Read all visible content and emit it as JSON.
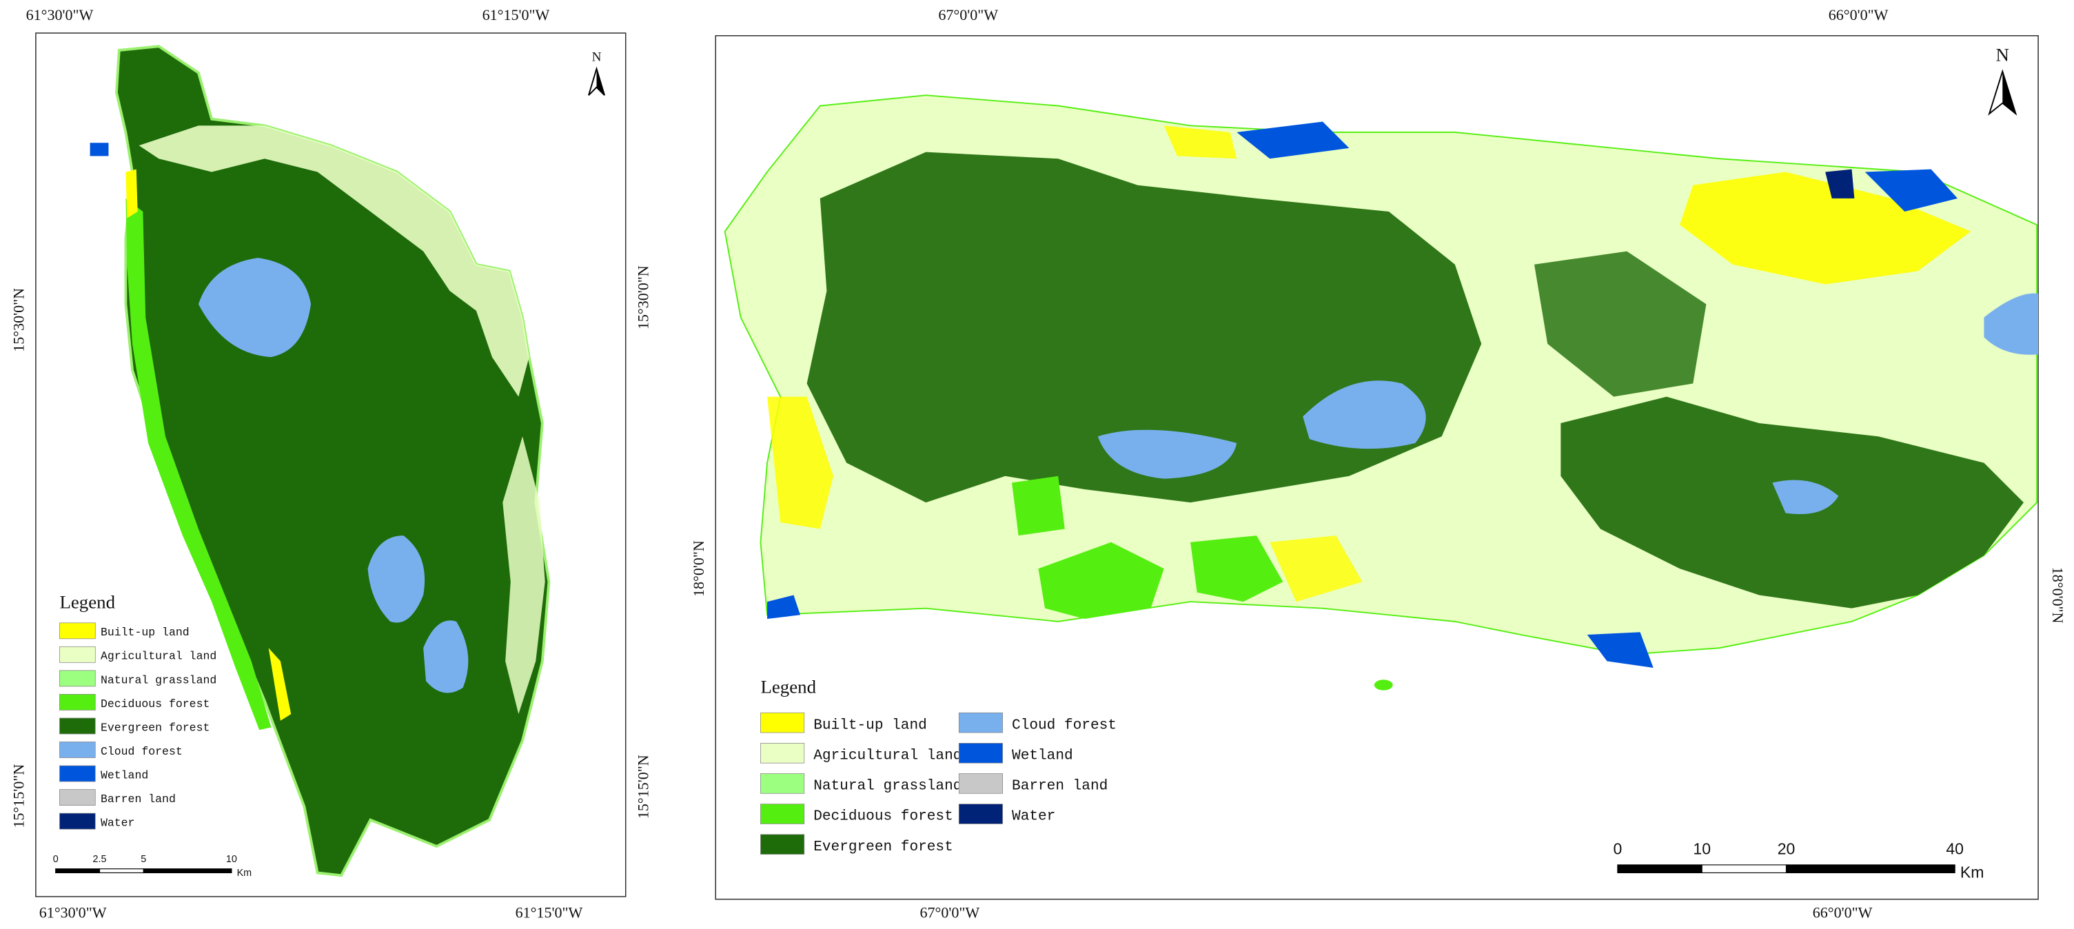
{
  "maps": [
    {
      "coordinates": {
        "top": [
          "61°30'0\"W",
          "61°15'0\"W"
        ],
        "bottom": [
          "61°30'0\"W",
          "61°15'0\"W"
        ],
        "left": [
          "15°30'0\"N",
          "15°15'0\"N"
        ],
        "right": [
          "15°30'0\"N",
          "15°15'0\"N"
        ]
      },
      "north": "N",
      "legend": {
        "title": "Legend",
        "items": [
          {
            "label": "Built-up land",
            "color": "#ffff00"
          },
          {
            "label": "Agricultural land",
            "color": "#eaffc4"
          },
          {
            "label": "Natural grassland",
            "color": "#9cff80"
          },
          {
            "label": "Deciduous forest",
            "color": "#55ee11"
          },
          {
            "label": "Evergreen forest",
            "color": "#1e6b0a"
          },
          {
            "label": "Cloud forest",
            "color": "#78b0ee"
          },
          {
            "label": "Wetland",
            "color": "#0055dd"
          },
          {
            "label": "Barren land",
            "color": "#c8c8c8"
          },
          {
            "label": "Water",
            "color": "#002277"
          }
        ]
      },
      "scale_bar": {
        "ticks": [
          0,
          2.5,
          5,
          10
        ],
        "unit": "Km"
      }
    },
    {
      "coordinates": {
        "top": [
          "67°0'0\"W",
          "66°0'0\"W"
        ],
        "bottom": [
          "67°0'0\"W",
          "66°0'0\"W"
        ],
        "left": [
          "18°0'0\"N"
        ],
        "right": [
          "18°0'0\"N"
        ]
      },
      "north": "N",
      "legend": {
        "title": "Legend",
        "items": [
          {
            "label": "Built-up land",
            "color": "#ffff00"
          },
          {
            "label": "Agricultural land",
            "color": "#eaffc4"
          },
          {
            "label": "Natural grassland",
            "color": "#9cff80"
          },
          {
            "label": "Deciduous forest",
            "color": "#55ee11"
          },
          {
            "label": "Evergreen forest",
            "color": "#1e6b0a"
          },
          {
            "label": "Cloud forest",
            "color": "#78b0ee"
          },
          {
            "label": "Wetland",
            "color": "#0055dd"
          },
          {
            "label": "Barren land",
            "color": "#c8c8c8"
          },
          {
            "label": "Water",
            "color": "#002277"
          }
        ]
      },
      "scale_bar": {
        "ticks": [
          0,
          10,
          20,
          40
        ],
        "unit": "Km"
      }
    }
  ]
}
